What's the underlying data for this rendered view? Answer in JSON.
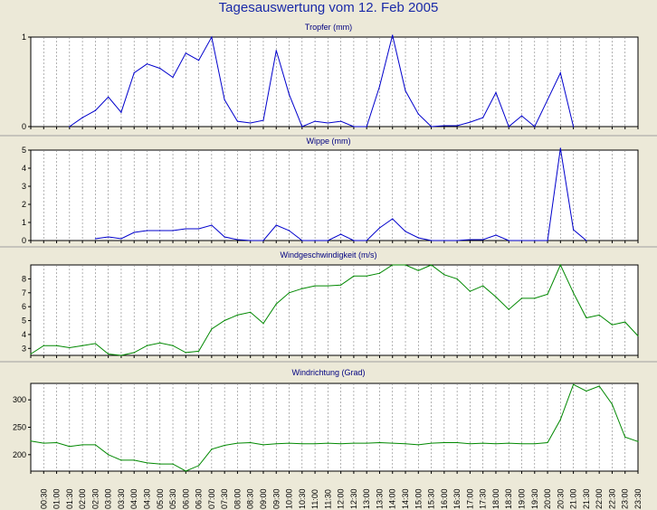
{
  "title": "Tagesauswertung vom 12. Feb 2005",
  "colors": {
    "background": "#ECE9D8",
    "plot_bg": "#FFFFFF",
    "grid": "#808080",
    "title": "#1a2aa8",
    "panel_title": "#000080",
    "blue_series": "#0000CC",
    "green_series": "#008800"
  },
  "chart_data": [
    {
      "type": "line",
      "title": "Tropfer (mm)",
      "color": "#0000CC",
      "ylim": [
        0,
        1
      ],
      "yticks": [
        0,
        1
      ],
      "values": [
        null,
        null,
        null,
        0,
        0.1,
        0.18,
        0.33,
        0.16,
        0.6,
        0.7,
        0.65,
        0.55,
        0.82,
        0.74,
        1.0,
        0.3,
        0.06,
        0.04,
        0.07,
        0.85,
        0.36,
        0.0,
        0.06,
        0.04,
        0.06,
        0.0,
        0.0,
        0.45,
        1.02,
        0.4,
        0.14,
        0.0,
        0.01,
        0.01,
        0.05,
        0.1,
        0.38,
        0.0,
        0.12,
        0.0,
        0.3,
        0.6,
        0.0,
        null,
        null,
        null,
        null,
        null
      ]
    },
    {
      "type": "line",
      "title": "Wippe (mm)",
      "color": "#0000CC",
      "ylim": [
        0,
        5
      ],
      "yticks": [
        0,
        1,
        2,
        3,
        4,
        5
      ],
      "values": [
        null,
        null,
        null,
        null,
        null,
        0.1,
        0.2,
        0.1,
        0.45,
        0.55,
        0.55,
        0.55,
        0.65,
        0.65,
        0.85,
        0.2,
        0.05,
        0.0,
        0.0,
        0.85,
        0.55,
        0.0,
        0.0,
        0.0,
        0.35,
        0.0,
        0.0,
        0.7,
        1.2,
        0.5,
        0.15,
        0.0,
        0.0,
        0.0,
        0.05,
        0.05,
        0.3,
        0.0,
        0.0,
        0.0,
        0.0,
        5.1,
        0.6,
        0.0,
        null,
        null,
        null,
        null
      ]
    },
    {
      "type": "line",
      "title": "Windgeschwindigkeit (m/s)",
      "color": "#008800",
      "ylim": [
        2.5,
        9.0
      ],
      "yticks": [
        3,
        4,
        5,
        6,
        7,
        8
      ],
      "values": [
        2.6,
        3.2,
        3.2,
        3.05,
        3.2,
        3.35,
        2.6,
        2.5,
        2.7,
        3.2,
        3.4,
        3.2,
        2.7,
        2.8,
        4.4,
        5.0,
        5.4,
        5.6,
        4.8,
        6.2,
        7.0,
        7.3,
        7.5,
        7.5,
        7.55,
        8.2,
        8.2,
        8.4,
        9.0,
        9.0,
        8.6,
        9.0,
        8.3,
        8.0,
        7.1,
        7.5,
        6.7,
        5.8,
        6.6,
        6.6,
        6.9,
        9.0,
        7.0,
        5.2,
        5.4,
        4.7,
        4.9,
        3.9
      ]
    },
    {
      "type": "line",
      "title": "Windrichtung (Grad)",
      "color": "#008800",
      "ylim": [
        170,
        330
      ],
      "yticks": [
        200,
        250,
        300
      ],
      "values": [
        225,
        221,
        222,
        215,
        218,
        218,
        200,
        190,
        190,
        185,
        183,
        183,
        170,
        180,
        210,
        217,
        221,
        222,
        218,
        220,
        221,
        220,
        220,
        221,
        220,
        221,
        221,
        222,
        221,
        220,
        218,
        221,
        222,
        222,
        220,
        221,
        220,
        221,
        220,
        220,
        222,
        264,
        328,
        316,
        325,
        292,
        232,
        224
      ]
    }
  ],
  "x_tick_labels": [
    "00:30",
    "01:00",
    "01:30",
    "02:00",
    "02:30",
    "03:00",
    "03:30",
    "04:00",
    "04:30",
    "05:00",
    "05:30",
    "06:00",
    "06:30",
    "07:00",
    "07:30",
    "08:00",
    "08:30",
    "09:00",
    "09:30",
    "10:00",
    "10:30",
    "11:00",
    "11:30",
    "12:00",
    "12:30",
    "13:00",
    "13:30",
    "14:00",
    "14:30",
    "15:00",
    "15:30",
    "16:00",
    "16:30",
    "17:00",
    "17:30",
    "18:00",
    "18:30",
    "19:00",
    "19:30",
    "20:00",
    "20:30",
    "21:00",
    "21:30",
    "22:00",
    "22:30",
    "23:00",
    "23:30"
  ]
}
